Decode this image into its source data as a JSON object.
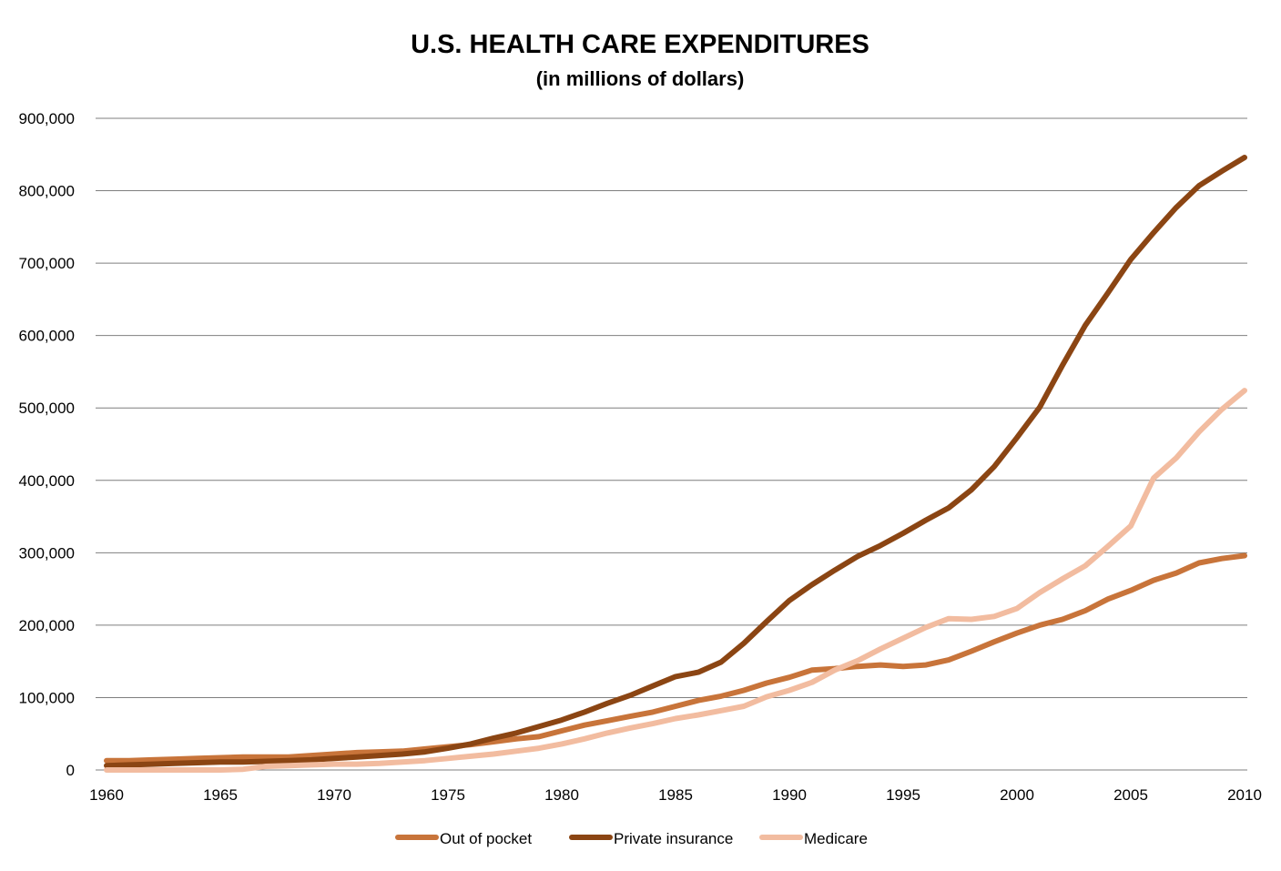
{
  "chart_data": {
    "type": "line",
    "title": "U.S. HEALTH CARE EXPENDITURES",
    "subtitle": "(in millions of dollars)",
    "xlabel": "",
    "ylabel": "",
    "xlim": [
      1960,
      2010
    ],
    "ylim": [
      0,
      900000
    ],
    "x_ticks": [
      "1960",
      "1965",
      "1970",
      "1975",
      "1980",
      "1985",
      "1990",
      "1995",
      "2000",
      "2005",
      "2010"
    ],
    "y_ticks": [
      "0",
      "100,000",
      "200,000",
      "300,000",
      "400,000",
      "500,000",
      "600,000",
      "700,000",
      "800,000",
      "900,000"
    ],
    "grid": true,
    "legend": "bottom",
    "x": [
      1960,
      1961,
      1962,
      1963,
      1964,
      1965,
      1966,
      1967,
      1968,
      1969,
      1970,
      1971,
      1972,
      1973,
      1974,
      1975,
      1976,
      1977,
      1978,
      1979,
      1980,
      1981,
      1982,
      1983,
      1984,
      1985,
      1986,
      1987,
      1988,
      1989,
      1990,
      1991,
      1992,
      1993,
      1994,
      1995,
      1996,
      1997,
      1998,
      1999,
      2000,
      2001,
      2002,
      2003,
      2004,
      2005,
      2006,
      2007,
      2008,
      2009,
      2010
    ],
    "series": [
      {
        "name": "Out of pocket",
        "color": "#C8743A",
        "values": [
          13000,
          13000,
          14000,
          15000,
          16000,
          17000,
          18000,
          18000,
          18000,
          20000,
          22000,
          24000,
          25000,
          26000,
          29000,
          32000,
          35000,
          39000,
          43000,
          46000,
          54000,
          62000,
          68000,
          74000,
          80000,
          88000,
          96000,
          102000,
          110000,
          120000,
          128000,
          138000,
          140000,
          143000,
          145000,
          143000,
          145000,
          152000,
          164000,
          177000,
          189000,
          200000,
          208000,
          220000,
          236000,
          248000,
          262000,
          272000,
          286000,
          292000,
          296000
        ]
      },
      {
        "name": "Private insurance",
        "color": "#8B4513",
        "values": [
          6000,
          7000,
          8000,
          9000,
          10000,
          11000,
          11000,
          12000,
          13000,
          14000,
          16000,
          18000,
          20000,
          22000,
          25000,
          30000,
          36000,
          44000,
          51000,
          60000,
          69000,
          80000,
          92000,
          103000,
          116000,
          129000,
          135000,
          149000,
          175000,
          205000,
          234000,
          256000,
          276000,
          295000,
          310000,
          327000,
          345000,
          362000,
          387000,
          419000,
          459000,
          501000,
          559000,
          614000,
          659000,
          705000,
          742000,
          777000,
          807000,
          827000,
          846000
        ]
      },
      {
        "name": "Medicare",
        "color": "#F2BCA0",
        "values": [
          0,
          0,
          0,
          0,
          0,
          0,
          1000,
          5000,
          6000,
          7000,
          8000,
          8000,
          9000,
          11000,
          13000,
          16000,
          19000,
          22000,
          26000,
          30000,
          36000,
          43000,
          51000,
          58000,
          64000,
          71000,
          76000,
          82000,
          88000,
          101000,
          110000,
          121000,
          138000,
          151000,
          167000,
          182000,
          197000,
          209000,
          208000,
          212000,
          223000,
          245000,
          264000,
          282000,
          309000,
          337000,
          403000,
          431000,
          467000,
          498000,
          524000
        ]
      }
    ]
  }
}
